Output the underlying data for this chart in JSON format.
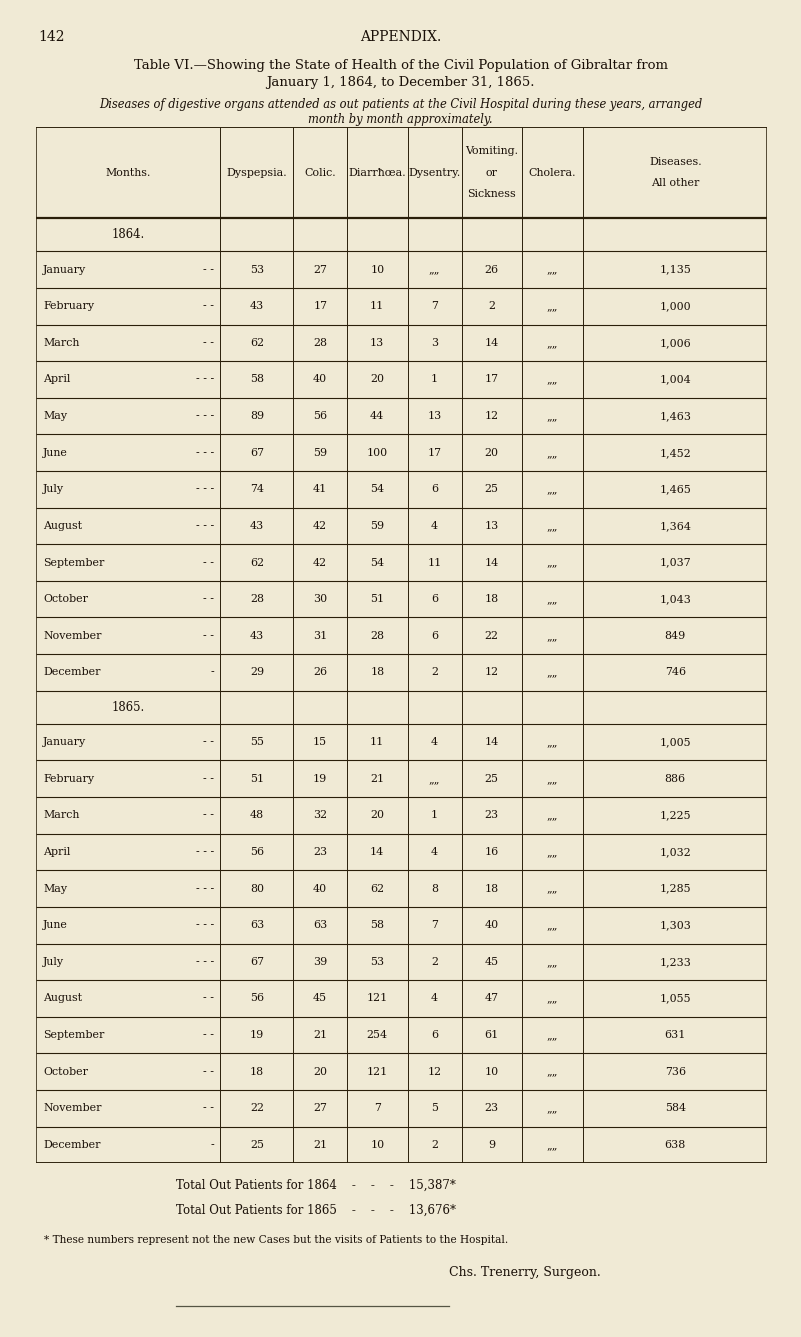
{
  "bg_color": "#f0ead5",
  "text_color": "#1a1008",
  "page_num": "142",
  "page_header": "APPENDIX.",
  "title1": "Table VI.—Showing the State of Health of the Civil Population of Gibraltar from",
  "title2": "January 1, 1864, to December 31, 1865.",
  "subtitle1": "Diseases of digestive organs attended as out patients at the Civil Hospital during these years, arranged",
  "subtitle2": "month by month approximately.",
  "col_headers": [
    "Months.",
    "Dyspepsia.",
    "Colic.",
    "Diarrħœa.",
    "Dysentry.",
    "Sickness\nor\nVomiting.",
    "Cholera.",
    "All other\nDiseases."
  ],
  "data_1864": [
    [
      "January",
      "- -",
      "53",
      "27",
      "10",
      "„„",
      "26",
      "„„",
      "1,135"
    ],
    [
      "February",
      "- -",
      "43",
      "17",
      "11",
      "7",
      "2",
      "„„",
      "1,000"
    ],
    [
      "March",
      "- -",
      "62",
      "28",
      "13",
      "3",
      "14",
      "„„",
      "1,006"
    ],
    [
      "April",
      "- - -",
      "58",
      "40",
      "20",
      "1",
      "17",
      "„„",
      "1,004"
    ],
    [
      "May",
      "- - -",
      "89",
      "56",
      "44",
      "13",
      "12",
      "„„",
      "1,463"
    ],
    [
      "June",
      "- - -",
      "67",
      "59",
      "100",
      "17",
      "20",
      "„„",
      "1,452"
    ],
    [
      "July",
      "- - -",
      "74",
      "41",
      "54",
      "6",
      "25",
      "„„",
      "1,465"
    ],
    [
      "August",
      "- - -",
      "43",
      "42",
      "59",
      "4",
      "13",
      "„„",
      "1,364"
    ],
    [
      "September",
      "- -",
      "62",
      "42",
      "54",
      "11",
      "14",
      "„„",
      "1,037"
    ],
    [
      "October",
      "- -",
      "28",
      "30",
      "51",
      "6",
      "18",
      "„„",
      "1,043"
    ],
    [
      "November",
      "- -",
      "43",
      "31",
      "28",
      "6",
      "22",
      "„„",
      "849"
    ],
    [
      "December",
      "-",
      "29",
      "26",
      "18",
      "2",
      "12",
      "„„",
      "746"
    ]
  ],
  "data_1865": [
    [
      "January",
      "- -",
      "55",
      "15",
      "11",
      "4",
      "14",
      "„„",
      "1,005"
    ],
    [
      "February",
      "- -",
      "51",
      "19",
      "21",
      "„„",
      "25",
      "„„",
      "886"
    ],
    [
      "March",
      "- -",
      "48",
      "32",
      "20",
      "1",
      "23",
      "„„",
      "1,225"
    ],
    [
      "April",
      "- - -",
      "56",
      "23",
      "14",
      "4",
      "16",
      "„„",
      "1,032"
    ],
    [
      "May",
      "- - -",
      "80",
      "40",
      "62",
      "8",
      "18",
      "„„",
      "1,285"
    ],
    [
      "June",
      "- - -",
      "63",
      "63",
      "58",
      "7",
      "40",
      "„„",
      "1,303"
    ],
    [
      "July",
      "- - -",
      "67",
      "39",
      "53",
      "2",
      "45",
      "„„",
      "1,233"
    ],
    [
      "August",
      "- -",
      "56",
      "45",
      "121",
      "4",
      "47",
      "„„",
      "1,055"
    ],
    [
      "September",
      "- -",
      "19",
      "21",
      "254",
      "6",
      "61",
      "„„",
      "631"
    ],
    [
      "October",
      "- -",
      "18",
      "20",
      "121",
      "12",
      "10",
      "„„",
      "736"
    ],
    [
      "November",
      "- -",
      "22",
      "27",
      "7",
      "5",
      "23",
      "„„",
      "584"
    ],
    [
      "December",
      "-",
      "25",
      "21",
      "10",
      "2",
      "9",
      "„„",
      "638"
    ]
  ],
  "total_1864": "15,387*",
  "total_1865": "13,676*",
  "footnote": "* These numbers represent not the new Cases but the visits of Patients to the Hospital.",
  "signature": "Chs. Trenerry, Surgeon."
}
